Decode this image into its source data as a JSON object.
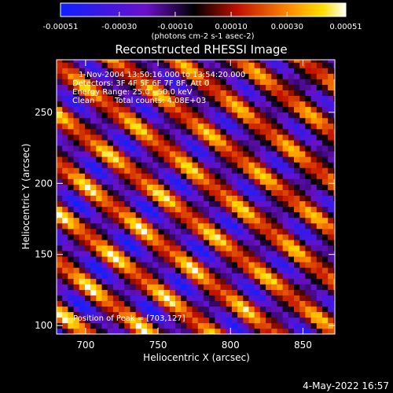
{
  "chart_data": {
    "type": "heatmap",
    "title": "Reconstructed RHESSI Image",
    "xlabel": "Heliocentric X (arcsec)",
    "ylabel": "Heliocentric Y (arcsec)",
    "xlim": [
      680,
      872
    ],
    "ylim": [
      94,
      287
    ],
    "x_ticks": [
      700,
      750,
      800,
      850
    ],
    "y_ticks": [
      100,
      150,
      200,
      250
    ],
    "colorbar": {
      "range": [
        -0.00051,
        0.00051
      ],
      "ticks": [
        "-0.00051",
        "-0.00030",
        "-0.00010",
        "0.00010",
        "0.00030",
        "0.00051"
      ],
      "unit_label": "(photons cm-2 s-1 asec-2)",
      "colormap": "blue-purple-black-red-orange-yellow-white"
    },
    "annotations": {
      "time_range": "1-Nov-2004 13:50:16.000 to 13:54:20.000",
      "detectors": "Detectors: 3F 4F 5F 6F 7F 8F, Att 0",
      "energy_range": "Energy Range: 25.0 - 50.0 keV",
      "method": "Clean",
      "total_counts": "Total counts: 4.08E+03",
      "peak_position": "Position of Peak = [703,127]"
    },
    "peak": {
      "x": 703,
      "y": 127
    },
    "pattern": "diagonal fringe stripes running from upper-left to lower-right, brightest near the peak"
  },
  "footer": {
    "timestamp": "4-May-2022 16:57"
  }
}
